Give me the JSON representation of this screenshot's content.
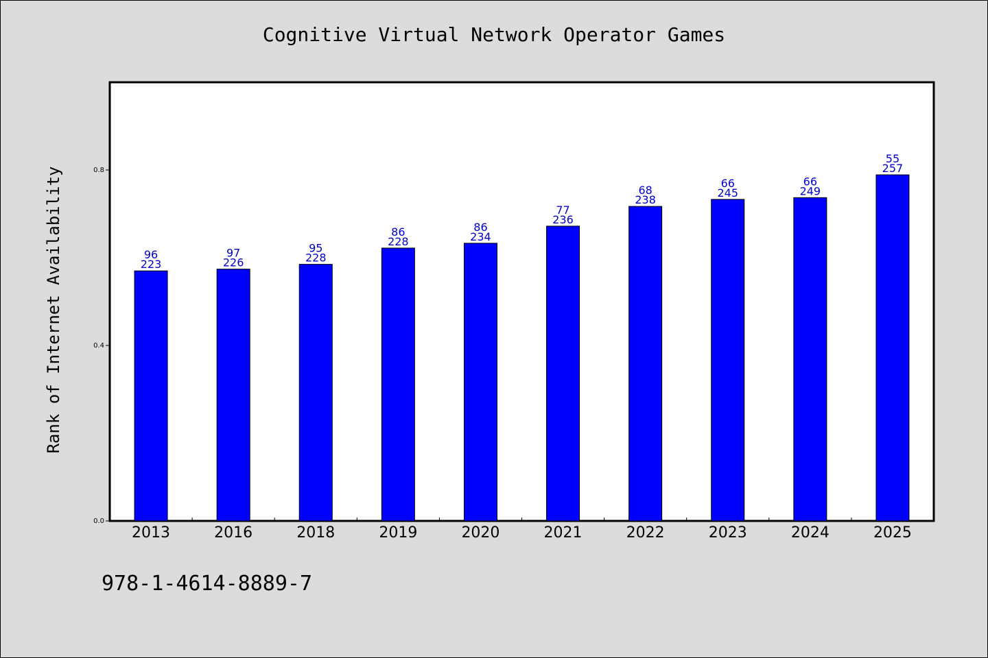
{
  "chart_data": {
    "type": "bar",
    "title": "Cognitive Virtual Network Operator Games",
    "ylabel": "Rank of Internet Availability",
    "xlabel": "",
    "categories": [
      "2013",
      "2016",
      "2018",
      "2019",
      "2020",
      "2021",
      "2022",
      "2023",
      "2024",
      "2025"
    ],
    "values": [
      0.57,
      0.574,
      0.585,
      0.622,
      0.633,
      0.672,
      0.717,
      0.733,
      0.737,
      0.789
    ],
    "annotations_top": [
      "96",
      "97",
      "95",
      "86",
      "86",
      "77",
      "68",
      "66",
      "66",
      "55"
    ],
    "annotations_bottom": [
      "223",
      "226",
      "228",
      "228",
      "234",
      "236",
      "238",
      "245",
      "249",
      "257"
    ],
    "yticks": [
      {
        "value": 0.0,
        "label": "0.0"
      },
      {
        "value": 0.4,
        "label": "0.4"
      },
      {
        "value": 0.8,
        "label": "0.8"
      }
    ],
    "ylim": [
      0,
      1.0
    ],
    "bar_color": "#0000ff",
    "label_color": "#0000cc",
    "grid": false,
    "legend": "none"
  },
  "footer": {
    "isbn": "978-1-4614-8889-7"
  }
}
